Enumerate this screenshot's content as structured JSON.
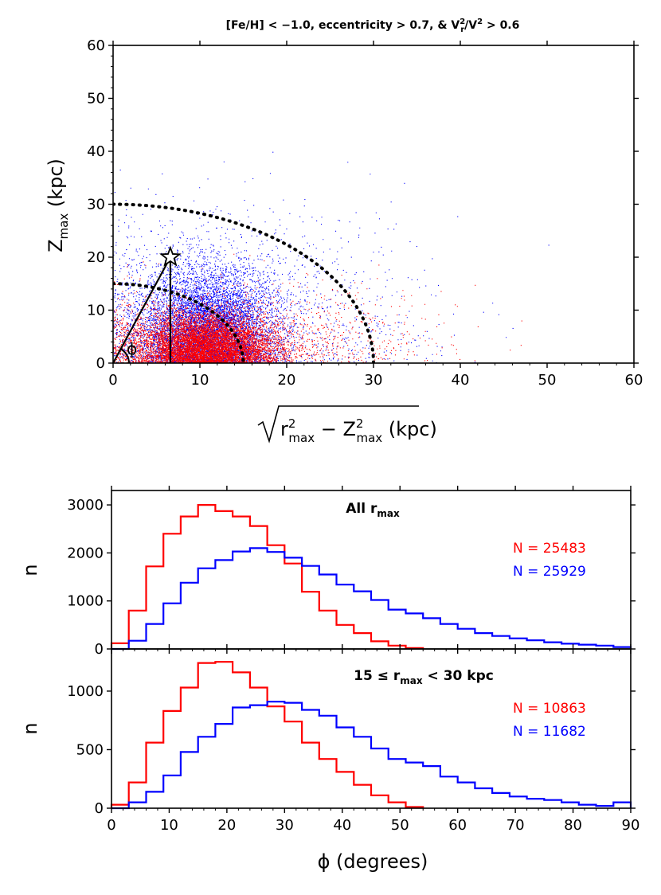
{
  "chart_data": [
    {
      "type": "scatter",
      "title": "[Fe/H] < −1.0,  eccentricity > 0.7,  & V²_r/V² > 0.6",
      "title_parts": {
        "metal": "[Fe/H]",
        "lt": " < ",
        "metal_cut": "−1.0",
        "sep1": ",  ",
        "ecc": "eccentricity",
        "gt": " > ",
        "ecc_cut": "0.7",
        "sep2": ",  & ",
        "vr": "V",
        "vr_sup": "2",
        "vr_sub": "r",
        "slash": "/V",
        "v_sup": "2",
        "gt2": " > ",
        "ratio_cut": "0.6"
      },
      "xlabel": "√(r²max − Z²max) (kpc)",
      "xlabel_parts": {
        "r": "r",
        "r_sup": "2",
        "r_sub": "max",
        "minus": " − Z",
        "z_sup": "2",
        "z_sub": "max",
        "unit": " (kpc)"
      },
      "ylabel": "Zmax (kpc)",
      "ylabel_parts": {
        "z": "Z",
        "z_sub": "max",
        "unit": " (kpc)"
      },
      "xlim": [
        0,
        60
      ],
      "ylim": [
        0,
        60
      ],
      "xticks": [
        0,
        10,
        20,
        30,
        40,
        50,
        60
      ],
      "yticks": [
        0,
        10,
        20,
        30,
        40,
        50,
        60
      ],
      "series": [
        {
          "name": "red population",
          "color": "#ff0000",
          "count": 25483,
          "peak": [
            11,
            3
          ],
          "spread": [
            5.5,
            4.5
          ]
        },
        {
          "name": "blue population",
          "color": "#0000ff",
          "count": 25929,
          "peak": [
            11,
            6
          ],
          "spread": [
            5.5,
            8.5
          ]
        }
      ],
      "annotations": {
        "arcs": [
          {
            "radius": 15,
            "style": "dotted"
          },
          {
            "radius": 30,
            "style": "dotted"
          }
        ],
        "star": {
          "x": 6.6,
          "y": 20
        },
        "angle_label": "ϕ"
      }
    },
    {
      "type": "histogram",
      "label": "All r_max",
      "label_parts": {
        "pre": "All r",
        "sub": "max",
        "post": ""
      },
      "ylabel": "n",
      "xlim": [
        0,
        90
      ],
      "ylim": [
        0,
        3300
      ],
      "yticks": [
        0,
        1000,
        2000,
        3000
      ],
      "bin_edges": [
        0,
        3,
        6,
        9,
        12,
        15,
        18,
        21,
        24,
        27,
        30,
        33,
        36,
        39,
        42,
        45,
        48,
        51,
        54,
        57,
        60,
        63,
        66,
        69,
        72,
        75,
        78,
        81,
        84,
        87,
        90
      ],
      "series": [
        {
          "name": "red",
          "color": "#ff0000",
          "legend": "N = 25483",
          "values": [
            120,
            800,
            1720,
            2400,
            2760,
            3000,
            2870,
            2760,
            2560,
            2160,
            1780,
            1190,
            800,
            500,
            330,
            160,
            70,
            20,
            0,
            0,
            0,
            0,
            0,
            0,
            0,
            0,
            0,
            0,
            0,
            0
          ]
        },
        {
          "name": "blue",
          "color": "#0000ff",
          "legend": "N = 25929",
          "values": [
            0,
            170,
            520,
            950,
            1380,
            1680,
            1850,
            2030,
            2100,
            2020,
            1900,
            1730,
            1550,
            1340,
            1200,
            1020,
            820,
            740,
            640,
            520,
            420,
            330,
            270,
            220,
            180,
            140,
            110,
            90,
            70,
            40
          ]
        }
      ]
    },
    {
      "type": "histogram",
      "label": "15 ≤ r_max < 30 kpc",
      "label_parts": {
        "pre": "15 ≤ r",
        "sub": "max",
        "post": " < 30 kpc"
      },
      "ylabel": "n",
      "xlabel": "ϕ (degrees)",
      "xlim": [
        0,
        90
      ],
      "ylim": [
        0,
        1360
      ],
      "yticks": [
        0,
        500,
        1000
      ],
      "xticks": [
        0,
        10,
        20,
        30,
        40,
        50,
        60,
        70,
        80,
        90
      ],
      "bin_edges": [
        0,
        3,
        6,
        9,
        12,
        15,
        18,
        21,
        24,
        27,
        30,
        33,
        36,
        39,
        42,
        45,
        48,
        51,
        54,
        57,
        60,
        63,
        66,
        69,
        72,
        75,
        78,
        81,
        84,
        87,
        90
      ],
      "series": [
        {
          "name": "red",
          "color": "#ff0000",
          "legend": "N = 10863",
          "values": [
            30,
            220,
            560,
            830,
            1030,
            1240,
            1250,
            1160,
            1030,
            870,
            740,
            560,
            420,
            310,
            200,
            110,
            50,
            10,
            0,
            0,
            0,
            0,
            0,
            0,
            0,
            0,
            0,
            0,
            0,
            0
          ]
        },
        {
          "name": "blue",
          "color": "#0000ff",
          "legend": "N = 11682",
          "values": [
            0,
            50,
            140,
            280,
            480,
            610,
            720,
            860,
            880,
            910,
            900,
            840,
            790,
            690,
            610,
            510,
            420,
            390,
            360,
            270,
            220,
            170,
            130,
            100,
            80,
            70,
            50,
            30,
            20,
            50
          ]
        }
      ]
    }
  ]
}
